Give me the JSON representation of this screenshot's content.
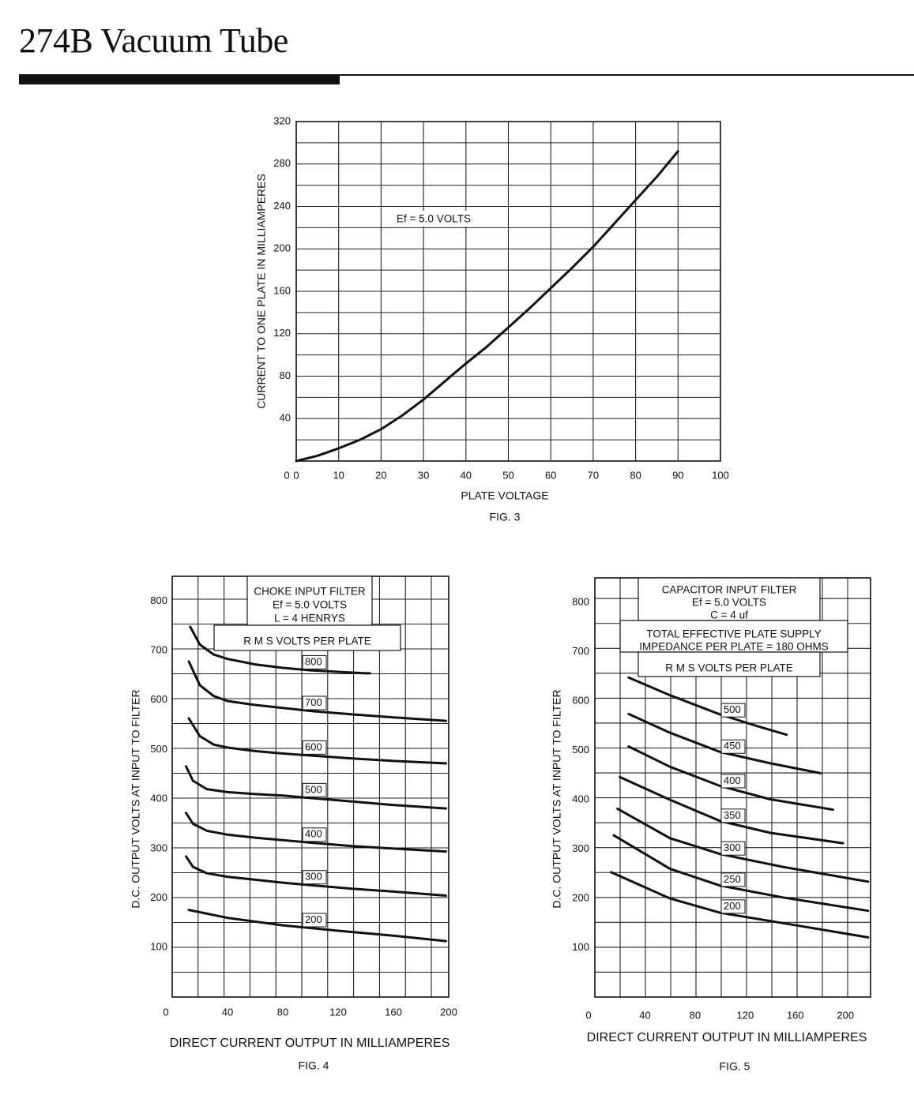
{
  "page": {
    "title": "274B Vacuum Tube"
  },
  "chart_data": [
    {
      "type": "line",
      "caption": "FIG. 3",
      "xlabel": "PLATE VOLTAGE",
      "ylabel": "CURRENT TO ONE PLATE IN MILLIAMPERES",
      "xlim": [
        0,
        100
      ],
      "ylim": [
        0,
        320
      ],
      "xticks": [
        0,
        10,
        20,
        30,
        40,
        50,
        60,
        70,
        80,
        90,
        100
      ],
      "yticks": [
        40,
        80,
        120,
        160,
        200,
        240,
        280,
        320
      ],
      "grid": true,
      "annotation": "Ef = 5.0 VOLTS",
      "series": [
        {
          "x": [
            0,
            5,
            10,
            15,
            20,
            25,
            30,
            35,
            40,
            45,
            50,
            55,
            60,
            65,
            70,
            75,
            80,
            85,
            90
          ],
          "y": [
            0,
            5,
            12,
            20,
            30,
            43,
            58,
            75,
            92,
            108,
            126,
            144,
            163,
            182,
            202,
            224,
            246,
            268,
            292
          ]
        }
      ]
    },
    {
      "type": "line",
      "caption": "FIG. 4",
      "xlabel": "DIRECT CURRENT OUTPUT IN MILLIAMPERES",
      "ylabel": "D.C. OUTPUT VOLTS AT INPUT TO FILTER",
      "xlim": [
        0,
        200
      ],
      "ylim": [
        0,
        850
      ],
      "xticks": [
        0,
        40,
        80,
        120,
        160,
        200
      ],
      "yticks": [
        100,
        200,
        300,
        400,
        500,
        600,
        700,
        800
      ],
      "grid": true,
      "box_lines": [
        "CHOKE INPUT FILTER",
        "Ef = 5.0 VOLTS",
        "L = 4 HENRYS"
      ],
      "legend_title": "R M S VOLTS PER PLATE",
      "series": [
        {
          "name": "800",
          "x": [
            13,
            20,
            30,
            40,
            60,
            80,
            100,
            120,
            140,
            143
          ],
          "y": [
            748,
            712,
            692,
            683,
            672,
            665,
            660,
            657,
            654,
            654
          ]
        },
        {
          "name": "700",
          "x": [
            12,
            20,
            30,
            40,
            60,
            80,
            100,
            130,
            160,
            198
          ],
          "y": [
            678,
            630,
            608,
            598,
            590,
            584,
            578,
            571,
            565,
            558
          ]
        },
        {
          "name": "600",
          "x": [
            12,
            20,
            30,
            40,
            60,
            80,
            100,
            130,
            160,
            198
          ],
          "y": [
            563,
            527,
            510,
            504,
            497,
            492,
            488,
            482,
            477,
            472
          ]
        },
        {
          "name": "500",
          "x": [
            10,
            15,
            25,
            40,
            60,
            80,
            100,
            130,
            160,
            198
          ],
          "y": [
            466,
            437,
            420,
            414,
            410,
            407,
            402,
            395,
            388,
            381
          ]
        },
        {
          "name": "400",
          "x": [
            10,
            15,
            25,
            40,
            60,
            80,
            100,
            130,
            160,
            198
          ],
          "y": [
            372,
            350,
            336,
            328,
            322,
            317,
            312,
            305,
            300,
            294
          ]
        },
        {
          "name": "300",
          "x": [
            10,
            15,
            25,
            40,
            60,
            80,
            100,
            130,
            160,
            198
          ],
          "y": [
            284,
            263,
            250,
            243,
            237,
            231,
            226,
            219,
            213,
            205
          ]
        },
        {
          "name": "200",
          "x": [
            12,
            40,
            80,
            120,
            160,
            198
          ],
          "y": [
            176,
            160,
            145,
            134,
            124,
            113
          ]
        }
      ]
    },
    {
      "type": "line",
      "caption": "FIG. 5",
      "xlabel": "DIRECT CURRENT OUTPUT IN MILLIAMPERES",
      "ylabel": "D.C. OUTPUT VOLTS AT INPUT TO FILTER",
      "xlim": [
        0,
        220
      ],
      "ylim": [
        0,
        850
      ],
      "xticks": [
        0,
        40,
        80,
        120,
        160,
        200
      ],
      "yticks": [
        100,
        200,
        300,
        400,
        500,
        600,
        700,
        800
      ],
      "grid": true,
      "box_lines": [
        "CAPACITOR INPUT FILTER",
        "Ef = 5.0 VOLTS",
        "C = 4 uf"
      ],
      "box2_lines": [
        "TOTAL EFFECTIVE PLATE SUPPLY",
        "IMPEDANCE PER PLATE = 180 OHMS"
      ],
      "legend_title": "R M S VOLTS PER PLATE",
      "series": [
        {
          "name": "500",
          "x": [
            27,
            60,
            100,
            130,
            153
          ],
          "y": [
            648,
            612,
            573,
            549,
            532
          ]
        },
        {
          "name": "450",
          "x": [
            27,
            60,
            100,
            140,
            180
          ],
          "y": [
            574,
            536,
            497,
            474,
            454
          ]
        },
        {
          "name": "400",
          "x": [
            27,
            60,
            100,
            140,
            190
          ],
          "y": [
            508,
            467,
            428,
            401,
            380
          ]
        },
        {
          "name": "350",
          "x": [
            20,
            60,
            100,
            140,
            198
          ],
          "y": [
            446,
            400,
            357,
            333,
            312
          ]
        },
        {
          "name": "300",
          "x": [
            18,
            60,
            100,
            150,
            218
          ],
          "y": [
            382,
            322,
            290,
            264,
            234
          ]
        },
        {
          "name": "250",
          "x": [
            15,
            60,
            100,
            150,
            218
          ],
          "y": [
            328,
            260,
            226,
            202,
            175
          ]
        },
        {
          "name": "200",
          "x": [
            13,
            60,
            100,
            150,
            218
          ],
          "y": [
            253,
            200,
            171,
            150,
            121
          ]
        }
      ]
    }
  ]
}
